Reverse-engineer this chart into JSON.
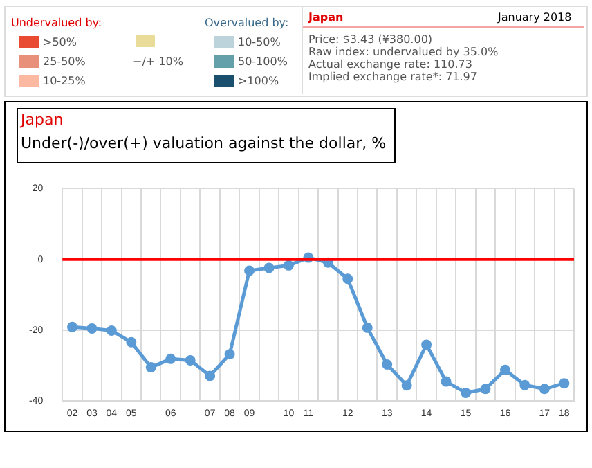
{
  "chart_data": {
    "type": "line",
    "title": "Japan",
    "subtitle": "Under(-)/over(+) valuation against the dollar, %",
    "categories": [
      "02",
      "03",
      "04",
      "05",
      null,
      "06",
      null,
      "07",
      "08",
      "09",
      null,
      "10",
      "11",
      null,
      "12",
      null,
      "13",
      null,
      "14",
      null,
      "15",
      null,
      "16",
      null,
      "17",
      "18"
    ],
    "series": [
      {
        "color": "#5b9bd5",
        "values": [
          -19.1,
          -19.5,
          -20.1,
          -23.4,
          -30.5,
          -28.1,
          -28.5,
          -32.9,
          -26.8,
          -3.2,
          -2.4,
          -1.7,
          0.5,
          -0.9,
          -5.5,
          -19.3,
          -29.7,
          -35.6,
          -24.1,
          -34.5,
          -37.7,
          -36.6,
          -31.2,
          -35.5,
          -36.6,
          -35.0
        ]
      }
    ],
    "ylim": [
      -40,
      20
    ],
    "yticks": [
      -40,
      -20,
      0,
      20
    ],
    "grid": true,
    "legend": false,
    "marker": "circle",
    "line_style": "solid",
    "ref_lines": [
      {
        "axis": "y",
        "value": 0,
        "color": "#ff0000"
      }
    ],
    "annotations": [
      "Undervalued by:",
      ">50%",
      "25-50%",
      "10-25%",
      "−/+ 10%",
      "Overvalued by:",
      "10-50%",
      "50-100%",
      ">100%",
      "Japan",
      "January 2018",
      "Price: $3.43 (¥380.00)",
      "Raw index: undervalued by 35.0%",
      "Actual exchange rate: 110.73",
      "Implied exchange rate*: 71.97"
    ]
  }
}
